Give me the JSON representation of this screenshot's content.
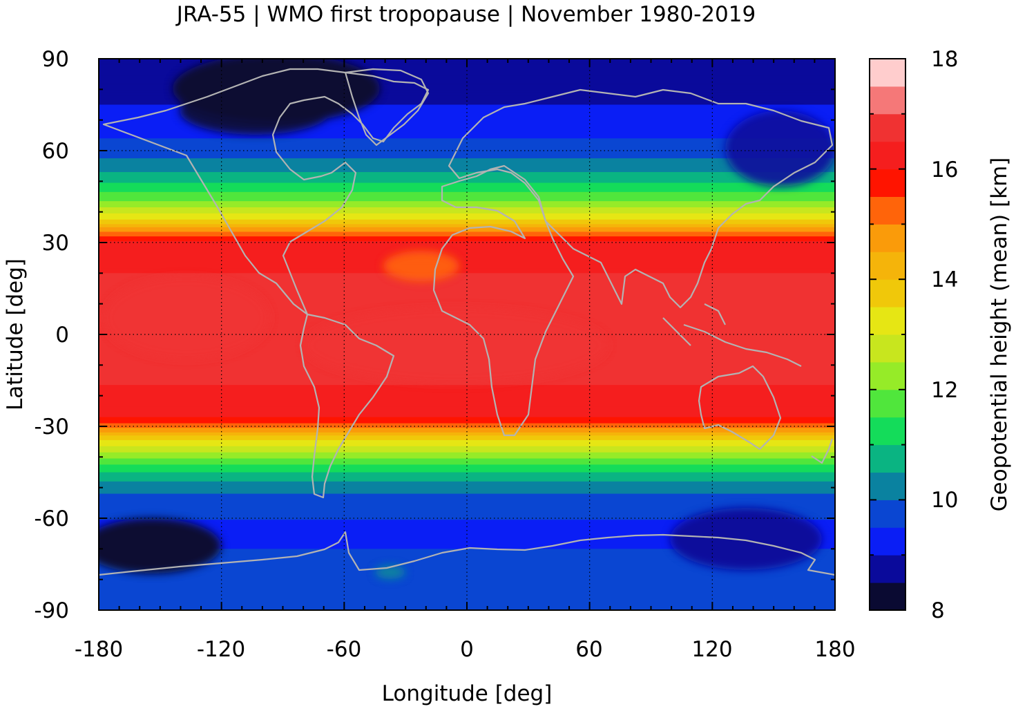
{
  "title": "JRA-55 | WMO first tropopause | November 1980-2019",
  "map": {
    "xlabel": "Longitude [deg]",
    "ylabel": "Latitude [deg]",
    "xlim": [
      -180,
      180
    ],
    "ylim": [
      -90,
      90
    ],
    "xticks": [
      "-180",
      "-120",
      "-60",
      "0",
      "60",
      "120",
      "180"
    ],
    "yticks": [
      "90",
      "60",
      "30",
      "0",
      "-30",
      "-60",
      "-90"
    ],
    "gridlines": "dotted",
    "coastline_color": "#b3b3b3",
    "field_description": "Zonal bands of tropopause height: ~16-17 km in tropics (30S-30N), decreasing poleward to ~9 km at high latitudes; minima over Canadian Arctic and Southern Ocean near 150W and 120E-150E."
  },
  "colorbar": {
    "label": "Geopotential height (mean) [km]",
    "range": [
      8,
      18
    ],
    "tick_labels": [
      "18",
      "16",
      "14",
      "12",
      "10",
      "8"
    ],
    "levels": [
      {
        "from": 8.0,
        "to": 8.5,
        "color": "#0a0a32"
      },
      {
        "from": 8.5,
        "to": 9.0,
        "color": "#0a0a9b"
      },
      {
        "from": 9.0,
        "to": 9.5,
        "color": "#0a1ef5"
      },
      {
        "from": 9.5,
        "to": 10.0,
        "color": "#0a46d2"
      },
      {
        "from": 10.0,
        "to": 10.5,
        "color": "#0a82a0"
      },
      {
        "from": 10.5,
        "to": 11.0,
        "color": "#0ab482"
      },
      {
        "from": 11.0,
        "to": 11.5,
        "color": "#14dc5a"
      },
      {
        "from": 11.5,
        "to": 12.0,
        "color": "#50e63c"
      },
      {
        "from": 12.0,
        "to": 12.5,
        "color": "#96eb28"
      },
      {
        "from": 12.5,
        "to": 13.0,
        "color": "#c8e61e"
      },
      {
        "from": 13.0,
        "to": 13.5,
        "color": "#e6e614"
      },
      {
        "from": 13.5,
        "to": 14.0,
        "color": "#f0c80a"
      },
      {
        "from": 14.0,
        "to": 14.5,
        "color": "#f5b40a"
      },
      {
        "from": 14.5,
        "to": 15.0,
        "color": "#fa9b0a"
      },
      {
        "from": 15.0,
        "to": 15.5,
        "color": "#ff640a"
      },
      {
        "from": 15.5,
        "to": 16.0,
        "color": "#ff1400"
      },
      {
        "from": 16.0,
        "to": 16.5,
        "color": "#f51e1e"
      },
      {
        "from": 16.5,
        "to": 17.0,
        "color": "#f03232"
      },
      {
        "from": 17.0,
        "to": 17.5,
        "color": "#f57878"
      },
      {
        "from": 17.5,
        "to": 18.0,
        "color": "#ffcdcd"
      }
    ]
  }
}
